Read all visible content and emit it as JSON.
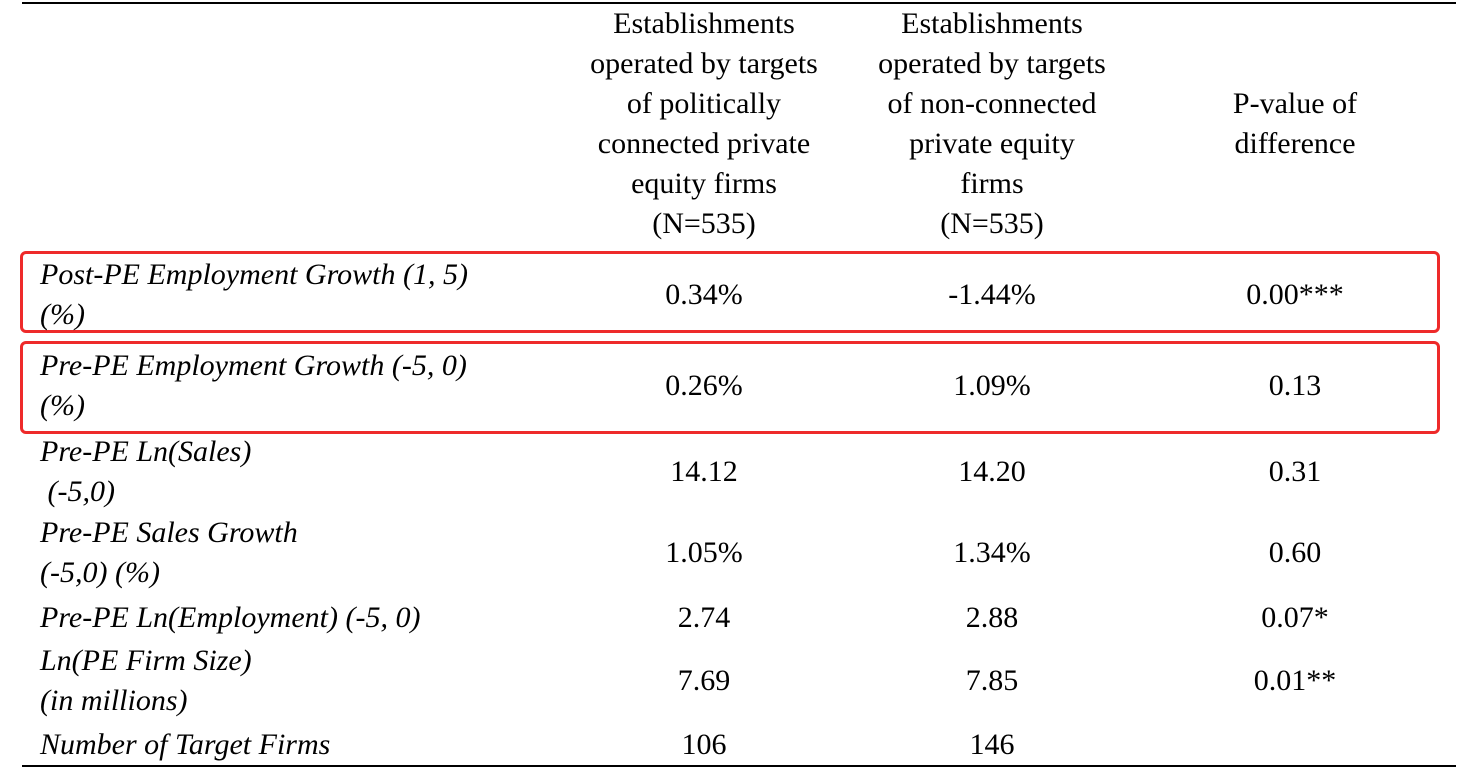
{
  "table": {
    "headers": [
      {
        "lines": [
          "Establishments",
          "operated by targets",
          "of politically",
          "connected private",
          "equity firms",
          "(N=535)"
        ]
      },
      {
        "lines": [
          "Establishments",
          "operated by targets",
          "of non-connected",
          "private equity",
          "firms",
          "(N=535)"
        ]
      },
      {
        "lines": [
          "P-value of",
          "difference"
        ]
      }
    ],
    "rows": [
      {
        "label_lines": [
          "Post-PE Employment Growth (1, 5)",
          "(%)"
        ],
        "connected": "0.34%",
        "non_connected": "-1.44%",
        "p_value": "0.00***",
        "highlighted": true
      },
      {
        "label_lines": [
          "Pre-PE Employment Growth (-5, 0)",
          "(%)"
        ],
        "connected": "0.26%",
        "non_connected": "1.09%",
        "p_value": "0.13",
        "highlighted": true
      },
      {
        "label_lines": [
          "Pre-PE Ln(Sales)",
          " (-5,0)"
        ],
        "connected": "14.12",
        "non_connected": "14.20",
        "p_value": "0.31",
        "highlighted": false
      },
      {
        "label_lines": [
          "Pre-PE Sales Growth",
          "(-5,0) (%)"
        ],
        "connected": "1.05%",
        "non_connected": "1.34%",
        "p_value": "0.60",
        "highlighted": false
      },
      {
        "label_lines": [
          "Pre-PE Ln(Employment) (-5, 0)"
        ],
        "connected": "2.74",
        "non_connected": "2.88",
        "p_value": "0.07*",
        "highlighted": false
      },
      {
        "label_lines": [
          "Ln(PE Firm Size)",
          "(in millions)"
        ],
        "connected": "7.69",
        "non_connected": "7.85",
        "p_value": "0.01**",
        "highlighted": false
      },
      {
        "label_lines": [
          "Number of Target Firms"
        ],
        "connected": "106",
        "non_connected": "146",
        "p_value": "",
        "highlighted": false
      }
    ],
    "highlight_color": "#ee2a2a"
  }
}
